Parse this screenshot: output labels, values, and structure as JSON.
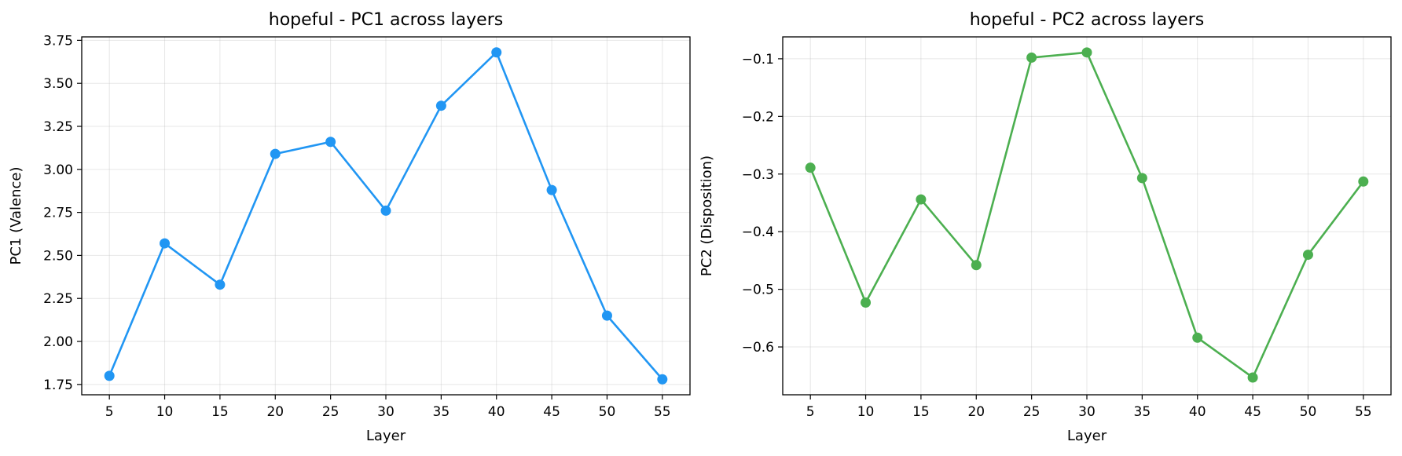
{
  "chart_data": [
    {
      "type": "line",
      "title": "hopeful - PC1 across layers",
      "xlabel": "Layer",
      "ylabel": "PC1 (Valence)",
      "xlim": [
        2.5,
        57.5
      ],
      "ylim": [
        1.69,
        3.77
      ],
      "grid": true,
      "xticks": [
        5,
        10,
        15,
        20,
        25,
        30,
        35,
        40,
        45,
        50,
        55
      ],
      "yticks": [
        1.75,
        2.0,
        2.25,
        2.5,
        2.75,
        3.0,
        3.25,
        3.5,
        3.75
      ],
      "ytick_labels": [
        "1.75",
        "2.00",
        "2.25",
        "2.50",
        "2.75",
        "3.00",
        "3.25",
        "3.50",
        "3.75"
      ],
      "color": "#2196f3",
      "series": [
        {
          "x": [
            5,
            10,
            15,
            20,
            25,
            30,
            35,
            40,
            45,
            50,
            55
          ],
          "y": [
            1.8,
            2.57,
            2.33,
            3.09,
            3.16,
            2.76,
            3.37,
            3.68,
            2.88,
            2.15,
            1.78
          ]
        }
      ]
    },
    {
      "type": "line",
      "title": "hopeful - PC2 across layers",
      "xlabel": "Layer",
      "ylabel": "PC2 (Disposition)",
      "xlim": [
        2.5,
        57.5
      ],
      "ylim": [
        -0.683,
        -0.062
      ],
      "grid": true,
      "xticks": [
        5,
        10,
        15,
        20,
        25,
        30,
        35,
        40,
        45,
        50,
        55
      ],
      "yticks": [
        -0.6,
        -0.5,
        -0.4,
        -0.3,
        -0.2,
        -0.1
      ],
      "ytick_labels": [
        "−0.6",
        "−0.5",
        "−0.4",
        "−0.3",
        "−0.2",
        "−0.1"
      ],
      "color": "#4caf50",
      "series": [
        {
          "x": [
            5,
            10,
            15,
            20,
            25,
            30,
            35,
            40,
            45,
            50,
            55
          ],
          "y": [
            -0.289,
            -0.523,
            -0.344,
            -0.458,
            -0.098,
            -0.089,
            -0.307,
            -0.584,
            -0.653,
            -0.44,
            -0.313
          ]
        }
      ]
    }
  ]
}
